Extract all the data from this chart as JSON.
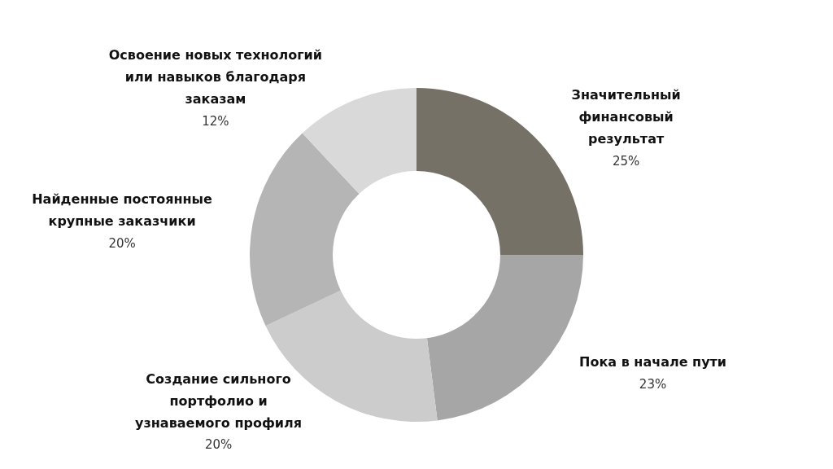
{
  "chart_data": {
    "type": "donut",
    "categories": [
      "Значительный\nфинансовый\nрезультат",
      "Пока в начале пути",
      "Создание сильного\nпортфолио и\nузнаваемого профиля",
      "Найденные постоянные\nкрупные заказчики",
      "Освоение новых технологий\nили навыков благодаря\nзаказам"
    ],
    "values": [
      25,
      23,
      20,
      20,
      12
    ],
    "colors": [
      "#767166",
      "#a6a6a6",
      "#cbcccb",
      "#b5b5b5",
      "#d9d9d9"
    ],
    "value_labels": [
      "25%",
      "23%",
      "20%",
      "20%",
      "12%"
    ],
    "legend": false
  }
}
